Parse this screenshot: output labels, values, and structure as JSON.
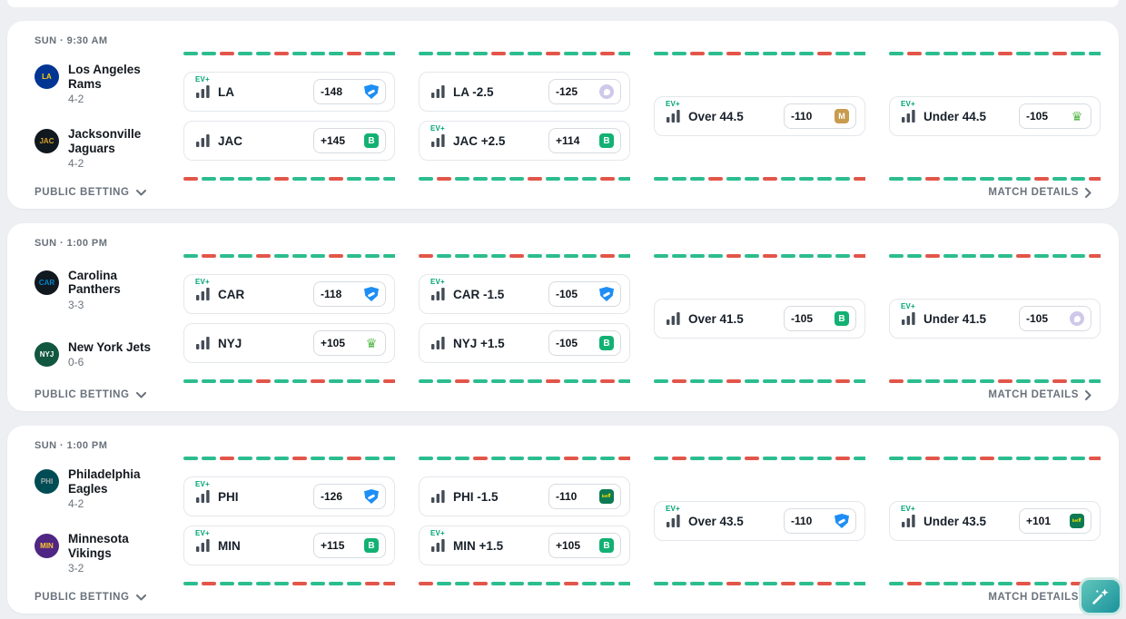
{
  "labels": {
    "ev": "EV+",
    "public_betting": "PUBLIC BETTING",
    "match_details": "MATCH DETAILS"
  },
  "fab": {
    "icon": "magic-wand"
  },
  "games": [
    {
      "time": "SUN · 9:30 AM",
      "away_team": {
        "name": "Los Angeles Rams",
        "record": "4-2",
        "logo": {
          "bg": "#003594",
          "fg": "#FFD100",
          "text": "LA"
        }
      },
      "home_team": {
        "name": "Jacksonville Jaguars",
        "record": "4-2",
        "logo": {
          "bg": "#101820",
          "fg": "#D7A22A",
          "text": "JAC"
        }
      },
      "moneyline": {
        "away": {
          "ev": true,
          "label": "LA",
          "odds": "-148",
          "book": "fanduel"
        },
        "home": {
          "ev": false,
          "label": "JAC",
          "odds": "+145",
          "book": "greenb"
        },
        "spark_top": "ggrggrgggrgg",
        "spark_bottom": "rggggrggrggg"
      },
      "spread": {
        "away": {
          "ev": false,
          "label": "LA -2.5",
          "odds": "-125",
          "book": "lavbird"
        },
        "home": {
          "ev": true,
          "label": "JAC +2.5",
          "odds": "+114",
          "book": "greenb"
        },
        "spark_top": "ggggrggrggrg",
        "spark_bottom": "grggggrgggrg"
      },
      "total_over": {
        "ev": true,
        "label": "Over 44.5",
        "odds": "-110",
        "book": "betmgm",
        "spark_top": "ggrgrggggrgg",
        "spark_bottom": "gggrggrggggr"
      },
      "total_under": {
        "ev": true,
        "label": "Under 44.5",
        "odds": "-105",
        "book": "draftkings",
        "spark_top": "grggggrggrgg",
        "spark_bottom": "ggrgggggrggr"
      }
    },
    {
      "time": "SUN · 1:00 PM",
      "away_team": {
        "name": "Carolina Panthers",
        "record": "3-3",
        "logo": {
          "bg": "#101820",
          "fg": "#0085CA",
          "text": "CAR"
        }
      },
      "home_team": {
        "name": "New York Jets",
        "record": "0-6",
        "logo": {
          "bg": "#125740",
          "fg": "#FFFFFF",
          "text": "NYJ"
        }
      },
      "moneyline": {
        "away": {
          "ev": true,
          "label": "CAR",
          "odds": "-118",
          "book": "fanduel"
        },
        "home": {
          "ev": false,
          "label": "NYJ",
          "odds": "+105",
          "book": "draftkings"
        },
        "spark_top": "grggrgggrggg",
        "spark_bottom": "ggggrggrgggr"
      },
      "spread": {
        "away": {
          "ev": true,
          "label": "CAR -1.5",
          "odds": "-105",
          "book": "fanduel"
        },
        "home": {
          "ev": false,
          "label": "NYJ +1.5",
          "odds": "-105",
          "book": "greenb"
        },
        "spark_top": "rggggrggggrg",
        "spark_bottom": "ggrggggrggrg"
      },
      "total_over": {
        "ev": false,
        "label": "Over 41.5",
        "odds": "-105",
        "book": "greenb",
        "spark_top": "ggggrgrggggr",
        "spark_bottom": "grggrgggggrg"
      },
      "total_under": {
        "ev": true,
        "label": "Under 41.5",
        "odds": "-105",
        "book": "lavbird",
        "spark_top": "ggrggggrgggr",
        "spark_bottom": "rgggggrggrgg"
      }
    },
    {
      "time": "SUN · 1:00 PM",
      "away_team": {
        "name": "Philadelphia Eagles",
        "record": "4-2",
        "logo": {
          "bg": "#004C54",
          "fg": "#A5ACAF",
          "text": "PHI"
        }
      },
      "home_team": {
        "name": "Minnesota Vikings",
        "record": "3-2",
        "logo": {
          "bg": "#4F2683",
          "fg": "#FFC62F",
          "text": "MIN"
        }
      },
      "moneyline": {
        "away": {
          "ev": true,
          "label": "PHI",
          "odds": "-126",
          "book": "fanduel"
        },
        "home": {
          "ev": true,
          "label": "MIN",
          "odds": "+115",
          "book": "greenb"
        },
        "spark_top": "ggrgggrggrgg",
        "spark_bottom": "grggggrgggrr"
      },
      "spread": {
        "away": {
          "ev": false,
          "label": "PHI -1.5",
          "odds": "-110",
          "book": "bet365"
        },
        "home": {
          "ev": true,
          "label": "MIN +1.5",
          "odds": "+105",
          "book": "greenb"
        },
        "spark_top": "gggrggggrggr",
        "spark_bottom": "rggrggggrggg"
      },
      "total_over": {
        "ev": true,
        "label": "Over 43.5",
        "odds": "-110",
        "book": "fanduel",
        "spark_top": "grgggrggggrg",
        "spark_bottom": "ggggrggrgrgg"
      },
      "total_under": {
        "ev": true,
        "label": "Under 43.5",
        "odds": "+101",
        "book": "bet365",
        "spark_top": "ggrggrgggggr",
        "spark_bottom": "grgggggrggrg"
      }
    }
  ]
}
